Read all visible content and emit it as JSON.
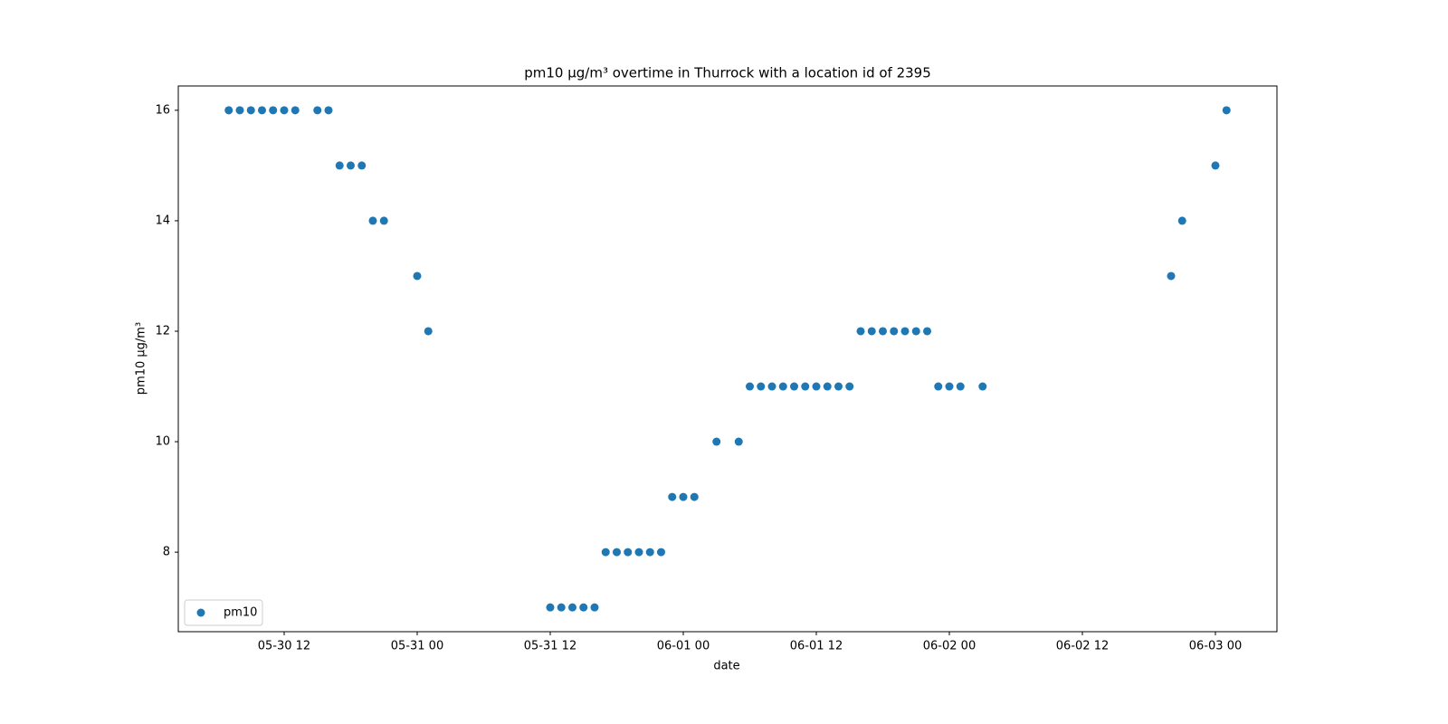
{
  "chart_data": {
    "type": "scatter",
    "title": "pm10 µg/m³ overtime in Thurrock with a location id of 2395",
    "x_label": "date",
    "y_label": "pm10 µg/m³",
    "legend": "lower left",
    "xlim": [
      "05-30 02:27",
      "06-03 05:33"
    ],
    "xticks": [
      "05-30 12",
      "05-31 00",
      "05-31 12",
      "06-01 00",
      "06-01 12",
      "06-02 00",
      "06-02 12",
      "06-03 00"
    ],
    "ylim": [
      6.56,
      16.44
    ],
    "yticks": [
      8,
      10,
      12,
      14,
      16
    ],
    "series": [
      {
        "name": "pm10",
        "color": "#1f77b4",
        "x": [
          "05-30 07",
          "05-30 08",
          "05-30 09",
          "05-30 10",
          "05-30 11",
          "05-30 12",
          "05-30 13",
          "05-30 15",
          "05-30 16",
          "05-30 17",
          "05-30 18",
          "05-30 19",
          "05-30 20",
          "05-30 21",
          "05-31 00",
          "05-31 01",
          "05-31 12",
          "05-31 13",
          "05-31 14",
          "05-31 15",
          "05-31 16",
          "05-31 17",
          "05-31 18",
          "05-31 19",
          "05-31 20",
          "05-31 21",
          "05-31 22",
          "05-31 23",
          "06-01 00",
          "06-01 01",
          "06-01 03",
          "06-01 05",
          "06-01 06",
          "06-01 07",
          "06-01 08",
          "06-01 09",
          "06-01 10",
          "06-01 11",
          "06-01 12",
          "06-01 13",
          "06-01 14",
          "06-01 15",
          "06-01 16",
          "06-01 17",
          "06-01 18",
          "06-01 19",
          "06-01 20",
          "06-01 21",
          "06-01 22",
          "06-01 23",
          "06-02 00",
          "06-02 01",
          "06-02 03",
          "06-02 20",
          "06-02 21",
          "06-03 00",
          "06-03 01"
        ],
        "values": [
          16,
          16,
          16,
          16,
          16,
          16,
          16,
          16,
          16,
          15,
          15,
          15,
          14,
          14,
          13,
          12,
          7,
          7,
          7,
          7,
          7,
          8,
          8,
          8,
          8,
          8,
          8,
          9,
          9,
          9,
          10,
          10,
          11,
          11,
          11,
          11,
          11,
          11,
          11,
          11,
          11,
          11,
          12,
          12,
          12,
          12,
          12,
          12,
          12,
          11,
          11,
          11,
          11,
          13,
          14,
          15,
          16
        ]
      }
    ]
  }
}
